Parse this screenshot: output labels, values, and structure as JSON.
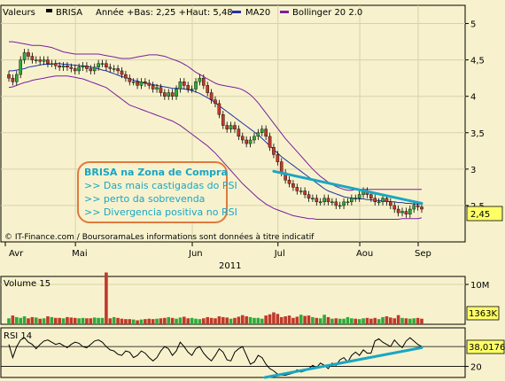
{
  "header": {
    "valeurs": "Valeurs",
    "ticker": "BRISA",
    "annee": "Année +Bas: 2,25 +Haut: 5,48",
    "ma20": "MA20",
    "bollinger": "Bollinger 20 2.0"
  },
  "footer_credit": "© IT-Finance.com / BoursoramaLes informations sont données à titre indicatif",
  "annotation": {
    "title": "BRISA na Zona de Compra",
    "lines": [
      ">> Das mais castigadas do PSI",
      ">> perto da sobrevenda",
      ">> Divergencia positiva no RSI"
    ]
  },
  "colors": {
    "background": "#f7f2cd",
    "up_candle": "#2eaa3a",
    "down_candle": "#c0392b",
    "ma20": "#2233aa",
    "bollinger": "#7a1fa2",
    "trendline": "#1aa6c4",
    "annotation_border": "#e07a3e",
    "last_badge": "#ffff66"
  },
  "chart_data": [
    {
      "type": "candlestick",
      "ylim": [
        2.0,
        5.25
      ],
      "yticks": [
        "5",
        "4,5",
        "4",
        "3,5",
        "3",
        "2,5"
      ],
      "ytick_values": [
        5,
        4.5,
        4,
        3.5,
        3,
        2.5
      ],
      "x_month_labels": [
        "Avr",
        "Mai",
        "Jun",
        "Jul",
        "Aou",
        "Sep"
      ],
      "x_year_label": "2011",
      "last_value_label": "2,45",
      "close": [
        4.25,
        4.2,
        4.3,
        4.5,
        4.6,
        4.55,
        4.5,
        4.5,
        4.48,
        4.5,
        4.45,
        4.45,
        4.42,
        4.4,
        4.42,
        4.4,
        4.38,
        4.35,
        4.4,
        4.42,
        4.38,
        4.35,
        4.4,
        4.45,
        4.45,
        4.4,
        4.38,
        4.38,
        4.35,
        4.3,
        4.25,
        4.2,
        4.2,
        4.15,
        4.2,
        4.18,
        4.15,
        4.1,
        4.12,
        4.05,
        4.0,
        4.05,
        4.0,
        4.1,
        4.2,
        4.15,
        4.1,
        4.1,
        4.2,
        4.25,
        4.15,
        4.05,
        3.95,
        3.9,
        3.75,
        3.6,
        3.55,
        3.6,
        3.55,
        3.45,
        3.4,
        3.35,
        3.4,
        3.45,
        3.5,
        3.55,
        3.45,
        3.3,
        3.2,
        3.1,
        2.95,
        2.85,
        2.8,
        2.75,
        2.7,
        2.7,
        2.65,
        2.6,
        2.6,
        2.55,
        2.55,
        2.6,
        2.55,
        2.55,
        2.5,
        2.5,
        2.55,
        2.55,
        2.6,
        2.6,
        2.65,
        2.7,
        2.65,
        2.6,
        2.55,
        2.55,
        2.6,
        2.55,
        2.5,
        2.45,
        2.4,
        2.42,
        2.38,
        2.45,
        2.5,
        2.48,
        2.45
      ],
      "ma20": [
        4.35,
        4.35,
        4.36,
        4.37,
        4.38,
        4.4,
        4.41,
        4.42,
        4.43,
        4.44,
        4.44,
        4.44,
        4.45,
        4.45,
        4.44,
        4.44,
        4.43,
        4.43,
        4.42,
        4.42,
        4.41,
        4.4,
        4.39,
        4.38,
        4.36,
        4.35,
        4.33,
        4.31,
        4.29,
        4.27,
        4.26,
        4.24,
        4.22,
        4.21,
        4.19,
        4.18,
        4.17,
        4.16,
        4.15,
        4.14,
        4.13,
        4.12,
        4.11,
        4.11,
        4.11,
        4.1,
        4.09,
        4.08,
        4.06,
        4.04,
        4.01,
        3.98,
        3.95,
        3.91,
        3.87,
        3.83,
        3.79,
        3.75,
        3.71,
        3.67,
        3.63,
        3.59,
        3.55,
        3.51,
        3.47,
        3.42,
        3.37,
        3.32,
        3.27,
        3.22,
        3.17,
        3.13,
        3.09,
        3.05,
        3.01,
        2.97,
        2.93,
        2.89,
        2.85,
        2.81,
        2.77,
        2.73,
        2.7,
        2.68,
        2.66,
        2.64,
        2.62,
        2.61,
        2.6,
        2.6,
        2.59,
        2.59,
        2.58,
        2.58,
        2.57,
        2.57,
        2.56,
        2.56,
        2.55,
        2.55,
        2.54,
        2.54,
        2.53,
        2.53,
        2.52,
        2.52,
        2.52
      ],
      "boll_upper": [
        4.75,
        4.75,
        4.74,
        4.73,
        4.72,
        4.71,
        4.7,
        4.7,
        4.7,
        4.69,
        4.68,
        4.67,
        4.65,
        4.63,
        4.61,
        4.6,
        4.59,
        4.58,
        4.58,
        4.58,
        4.58,
        4.58,
        4.58,
        4.58,
        4.57,
        4.56,
        4.55,
        4.54,
        4.53,
        4.52,
        4.52,
        4.52,
        4.53,
        4.54,
        4.55,
        4.56,
        4.57,
        4.57,
        4.57,
        4.56,
        4.55,
        4.53,
        4.51,
        4.49,
        4.47,
        4.44,
        4.41,
        4.37,
        4.33,
        4.3,
        4.27,
        4.24,
        4.21,
        4.18,
        4.16,
        4.15,
        4.14,
        4.13,
        4.12,
        4.11,
        4.09,
        4.06,
        4.02,
        3.97,
        3.91,
        3.84,
        3.77,
        3.7,
        3.63,
        3.56,
        3.49,
        3.42,
        3.36,
        3.3,
        3.24,
        3.18,
        3.12,
        3.06,
        3.0,
        2.95,
        2.9,
        2.86,
        2.82,
        2.79,
        2.76,
        2.74,
        2.72,
        2.71,
        2.71,
        2.72,
        2.72,
        2.72,
        2.72,
        2.72,
        2.72,
        2.72,
        2.72,
        2.72,
        2.72,
        2.72,
        2.72,
        2.72,
        2.72,
        2.72,
        2.72,
        2.72,
        2.72
      ],
      "boll_lower": [
        4.12,
        4.13,
        4.15,
        4.17,
        4.19,
        4.2,
        4.22,
        4.23,
        4.24,
        4.25,
        4.26,
        4.27,
        4.28,
        4.28,
        4.28,
        4.28,
        4.27,
        4.26,
        4.25,
        4.24,
        4.22,
        4.2,
        4.18,
        4.16,
        4.14,
        4.12,
        4.08,
        4.04,
        4.0,
        3.96,
        3.92,
        3.88,
        3.86,
        3.84,
        3.82,
        3.8,
        3.78,
        3.76,
        3.74,
        3.72,
        3.7,
        3.68,
        3.66,
        3.63,
        3.6,
        3.56,
        3.52,
        3.48,
        3.44,
        3.4,
        3.36,
        3.32,
        3.27,
        3.22,
        3.16,
        3.1,
        3.04,
        2.98,
        2.92,
        2.86,
        2.8,
        2.75,
        2.7,
        2.65,
        2.6,
        2.56,
        2.52,
        2.49,
        2.46,
        2.44,
        2.42,
        2.4,
        2.38,
        2.36,
        2.35,
        2.34,
        2.33,
        2.32,
        2.32,
        2.31,
        2.31,
        2.31,
        2.31,
        2.31,
        2.31,
        2.31,
        2.31,
        2.31,
        2.31,
        2.31,
        2.31,
        2.31,
        2.31,
        2.31,
        2.31,
        2.31,
        2.31,
        2.31,
        2.31,
        2.31,
        2.31,
        2.32,
        2.32,
        2.32,
        2.32,
        2.32,
        2.33
      ],
      "trendline": [
        [
          68,
          2.97
        ],
        [
          106,
          2.53
        ]
      ]
    },
    {
      "type": "bar",
      "title": "Volume 15",
      "ylim": [
        0,
        12
      ],
      "yticks": [
        "10M"
      ],
      "ytick_values": [
        10
      ],
      "last_value_label": "1363K",
      "volume": [
        1.5,
        2.2,
        1.8,
        1.6,
        2.0,
        1.5,
        1.8,
        1.7,
        1.4,
        1.5,
        2.0,
        1.8,
        1.6,
        1.6,
        1.5,
        1.8,
        1.7,
        1.6,
        1.5,
        1.6,
        1.5,
        1.5,
        1.7,
        1.6,
        1.6,
        13.0,
        1.5,
        1.8,
        1.6,
        1.4,
        1.3,
        1.3,
        1.2,
        1.0,
        1.2,
        1.3,
        1.4,
        1.3,
        1.4,
        1.5,
        1.6,
        1.8,
        1.6,
        1.4,
        1.7,
        1.9,
        1.5,
        1.6,
        1.4,
        1.3,
        1.5,
        1.8,
        1.6,
        1.5,
        2.0,
        1.8,
        1.7,
        1.4,
        1.6,
        1.9,
        2.3,
        2.0,
        1.8,
        1.6,
        1.6,
        1.4,
        2.2,
        2.5,
        3.0,
        2.6,
        1.8,
        2.0,
        2.2,
        1.6,
        1.9,
        2.4,
        2.1,
        2.2,
        1.8,
        1.6,
        1.5,
        2.4,
        1.8,
        1.4,
        1.5,
        1.4,
        1.4,
        1.8,
        1.5,
        1.4,
        1.3,
        1.5,
        1.6,
        1.4,
        1.6,
        1.3,
        1.8,
        2.0,
        1.7,
        1.5,
        2.3,
        1.6,
        1.5,
        1.4,
        1.5,
        1.6,
        1.4
      ],
      "up": [
        1,
        0,
        1,
        1,
        1,
        0,
        0,
        1,
        0,
        1,
        0,
        1,
        0,
        0,
        1,
        0,
        0,
        0,
        1,
        1,
        0,
        0,
        1,
        1,
        1,
        0,
        0,
        1,
        0,
        0,
        0,
        0,
        1,
        0,
        1,
        0,
        0,
        0,
        1,
        0,
        0,
        1,
        0,
        1,
        1,
        0,
        0,
        1,
        1,
        1,
        0,
        0,
        0,
        0,
        0,
        0,
        0,
        1,
        0,
        0,
        0,
        0,
        1,
        1,
        1,
        1,
        0,
        0,
        0,
        0,
        0,
        0,
        0,
        0,
        0,
        1,
        0,
        0,
        1,
        0,
        1,
        1,
        0,
        1,
        0,
        1,
        1,
        1,
        1,
        0,
        1,
        1,
        0,
        0,
        0,
        1,
        1,
        0,
        0,
        0,
        0,
        1,
        0,
        1,
        1,
        0,
        0
      ]
    },
    {
      "type": "line",
      "title": "RSI 14",
      "ylim": [
        10,
        55
      ],
      "yticks": [
        "20"
      ],
      "ytick_values": [
        20
      ],
      "last_value_label": "38,0176",
      "rsi": [
        40,
        28,
        38,
        44,
        46,
        42,
        40,
        36,
        40,
        43,
        44,
        42,
        40,
        41,
        39,
        37,
        40,
        42,
        41,
        38,
        37,
        40,
        43,
        44,
        42,
        38,
        35,
        34,
        31,
        30,
        34,
        33,
        28,
        30,
        34,
        32,
        28,
        25,
        28,
        34,
        38,
        36,
        30,
        34,
        42,
        38,
        33,
        30,
        36,
        38,
        32,
        28,
        25,
        30,
        36,
        33,
        26,
        25,
        33,
        36,
        38,
        30,
        22,
        24,
        30,
        28,
        22,
        18,
        16,
        13,
        12,
        12,
        13,
        14,
        17,
        15,
        16,
        18,
        21,
        19,
        23,
        21,
        18,
        23,
        21,
        26,
        28,
        24,
        30,
        33,
        30,
        35,
        32,
        32,
        43,
        45,
        42,
        40,
        38,
        44,
        40,
        37,
        43,
        46,
        43,
        40,
        38
      ],
      "trendline": [
        [
          68,
          10
        ],
        [
          106,
          37
        ]
      ]
    }
  ]
}
